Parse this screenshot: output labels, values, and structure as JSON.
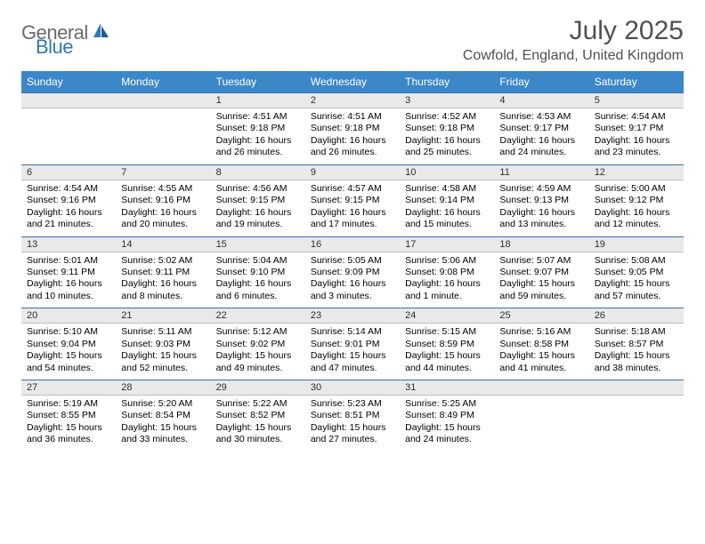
{
  "logo": {
    "word1": "General",
    "word2": "Blue"
  },
  "title": "July 2025",
  "location": "Cowfold, England, United Kingdom",
  "colors": {
    "header_bg": "#3b87c8",
    "daynum_bg": "#e9e9e9",
    "border_top": "#3b6fa0",
    "logo_gray": "#6a6a6a",
    "logo_blue": "#2f78b7"
  },
  "day_labels": [
    "Sunday",
    "Monday",
    "Tuesday",
    "Wednesday",
    "Thursday",
    "Friday",
    "Saturday"
  ],
  "weeks": [
    [
      {
        "n": "",
        "lines": [
          "",
          "",
          "",
          ""
        ]
      },
      {
        "n": "",
        "lines": [
          "",
          "",
          "",
          ""
        ]
      },
      {
        "n": "1",
        "lines": [
          "Sunrise: 4:51 AM",
          "Sunset: 9:18 PM",
          "Daylight: 16 hours",
          "and 26 minutes."
        ]
      },
      {
        "n": "2",
        "lines": [
          "Sunrise: 4:51 AM",
          "Sunset: 9:18 PM",
          "Daylight: 16 hours",
          "and 26 minutes."
        ]
      },
      {
        "n": "3",
        "lines": [
          "Sunrise: 4:52 AM",
          "Sunset: 9:18 PM",
          "Daylight: 16 hours",
          "and 25 minutes."
        ]
      },
      {
        "n": "4",
        "lines": [
          "Sunrise: 4:53 AM",
          "Sunset: 9:17 PM",
          "Daylight: 16 hours",
          "and 24 minutes."
        ]
      },
      {
        "n": "5",
        "lines": [
          "Sunrise: 4:54 AM",
          "Sunset: 9:17 PM",
          "Daylight: 16 hours",
          "and 23 minutes."
        ]
      }
    ],
    [
      {
        "n": "6",
        "lines": [
          "Sunrise: 4:54 AM",
          "Sunset: 9:16 PM",
          "Daylight: 16 hours",
          "and 21 minutes."
        ]
      },
      {
        "n": "7",
        "lines": [
          "Sunrise: 4:55 AM",
          "Sunset: 9:16 PM",
          "Daylight: 16 hours",
          "and 20 minutes."
        ]
      },
      {
        "n": "8",
        "lines": [
          "Sunrise: 4:56 AM",
          "Sunset: 9:15 PM",
          "Daylight: 16 hours",
          "and 19 minutes."
        ]
      },
      {
        "n": "9",
        "lines": [
          "Sunrise: 4:57 AM",
          "Sunset: 9:15 PM",
          "Daylight: 16 hours",
          "and 17 minutes."
        ]
      },
      {
        "n": "10",
        "lines": [
          "Sunrise: 4:58 AM",
          "Sunset: 9:14 PM",
          "Daylight: 16 hours",
          "and 15 minutes."
        ]
      },
      {
        "n": "11",
        "lines": [
          "Sunrise: 4:59 AM",
          "Sunset: 9:13 PM",
          "Daylight: 16 hours",
          "and 13 minutes."
        ]
      },
      {
        "n": "12",
        "lines": [
          "Sunrise: 5:00 AM",
          "Sunset: 9:12 PM",
          "Daylight: 16 hours",
          "and 12 minutes."
        ]
      }
    ],
    [
      {
        "n": "13",
        "lines": [
          "Sunrise: 5:01 AM",
          "Sunset: 9:11 PM",
          "Daylight: 16 hours",
          "and 10 minutes."
        ]
      },
      {
        "n": "14",
        "lines": [
          "Sunrise: 5:02 AM",
          "Sunset: 9:11 PM",
          "Daylight: 16 hours",
          "and 8 minutes."
        ]
      },
      {
        "n": "15",
        "lines": [
          "Sunrise: 5:04 AM",
          "Sunset: 9:10 PM",
          "Daylight: 16 hours",
          "and 6 minutes."
        ]
      },
      {
        "n": "16",
        "lines": [
          "Sunrise: 5:05 AM",
          "Sunset: 9:09 PM",
          "Daylight: 16 hours",
          "and 3 minutes."
        ]
      },
      {
        "n": "17",
        "lines": [
          "Sunrise: 5:06 AM",
          "Sunset: 9:08 PM",
          "Daylight: 16 hours",
          "and 1 minute."
        ]
      },
      {
        "n": "18",
        "lines": [
          "Sunrise: 5:07 AM",
          "Sunset: 9:07 PM",
          "Daylight: 15 hours",
          "and 59 minutes."
        ]
      },
      {
        "n": "19",
        "lines": [
          "Sunrise: 5:08 AM",
          "Sunset: 9:05 PM",
          "Daylight: 15 hours",
          "and 57 minutes."
        ]
      }
    ],
    [
      {
        "n": "20",
        "lines": [
          "Sunrise: 5:10 AM",
          "Sunset: 9:04 PM",
          "Daylight: 15 hours",
          "and 54 minutes."
        ]
      },
      {
        "n": "21",
        "lines": [
          "Sunrise: 5:11 AM",
          "Sunset: 9:03 PM",
          "Daylight: 15 hours",
          "and 52 minutes."
        ]
      },
      {
        "n": "22",
        "lines": [
          "Sunrise: 5:12 AM",
          "Sunset: 9:02 PM",
          "Daylight: 15 hours",
          "and 49 minutes."
        ]
      },
      {
        "n": "23",
        "lines": [
          "Sunrise: 5:14 AM",
          "Sunset: 9:01 PM",
          "Daylight: 15 hours",
          "and 47 minutes."
        ]
      },
      {
        "n": "24",
        "lines": [
          "Sunrise: 5:15 AM",
          "Sunset: 8:59 PM",
          "Daylight: 15 hours",
          "and 44 minutes."
        ]
      },
      {
        "n": "25",
        "lines": [
          "Sunrise: 5:16 AM",
          "Sunset: 8:58 PM",
          "Daylight: 15 hours",
          "and 41 minutes."
        ]
      },
      {
        "n": "26",
        "lines": [
          "Sunrise: 5:18 AM",
          "Sunset: 8:57 PM",
          "Daylight: 15 hours",
          "and 38 minutes."
        ]
      }
    ],
    [
      {
        "n": "27",
        "lines": [
          "Sunrise: 5:19 AM",
          "Sunset: 8:55 PM",
          "Daylight: 15 hours",
          "and 36 minutes."
        ]
      },
      {
        "n": "28",
        "lines": [
          "Sunrise: 5:20 AM",
          "Sunset: 8:54 PM",
          "Daylight: 15 hours",
          "and 33 minutes."
        ]
      },
      {
        "n": "29",
        "lines": [
          "Sunrise: 5:22 AM",
          "Sunset: 8:52 PM",
          "Daylight: 15 hours",
          "and 30 minutes."
        ]
      },
      {
        "n": "30",
        "lines": [
          "Sunrise: 5:23 AM",
          "Sunset: 8:51 PM",
          "Daylight: 15 hours",
          "and 27 minutes."
        ]
      },
      {
        "n": "31",
        "lines": [
          "Sunrise: 5:25 AM",
          "Sunset: 8:49 PM",
          "Daylight: 15 hours",
          "and 24 minutes."
        ]
      },
      {
        "n": "",
        "lines": [
          "",
          "",
          "",
          ""
        ]
      },
      {
        "n": "",
        "lines": [
          "",
          "",
          "",
          ""
        ]
      }
    ]
  ]
}
